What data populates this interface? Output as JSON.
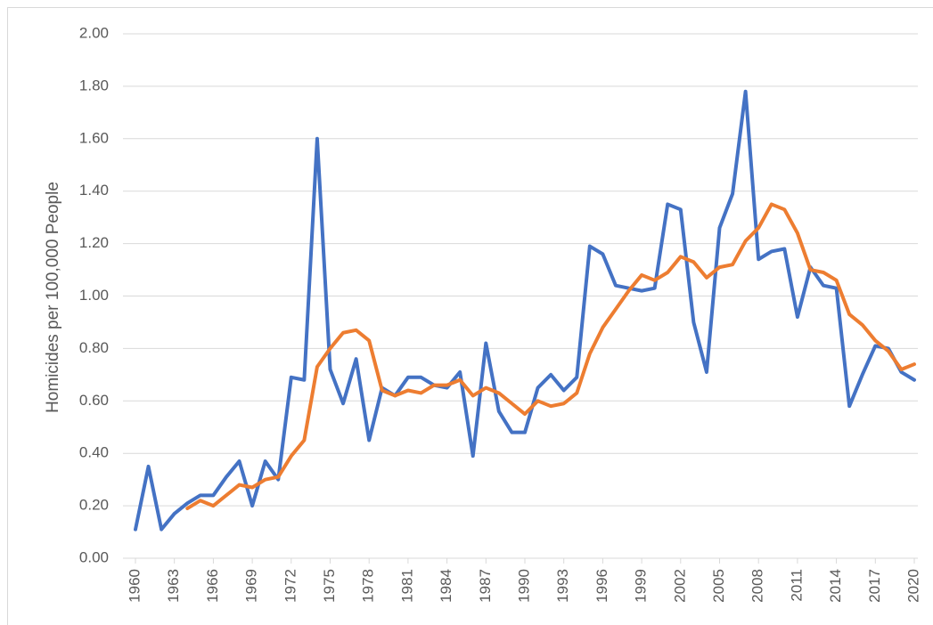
{
  "chart_data": {
    "type": "line",
    "y_label": "Homicides per 100,000 People",
    "x": [
      1960,
      1961,
      1962,
      1963,
      1964,
      1965,
      1966,
      1967,
      1968,
      1969,
      1970,
      1971,
      1972,
      1973,
      1974,
      1975,
      1976,
      1977,
      1978,
      1979,
      1980,
      1981,
      1982,
      1983,
      1984,
      1985,
      1986,
      1987,
      1988,
      1989,
      1990,
      1991,
      1992,
      1993,
      1994,
      1995,
      1996,
      1997,
      1998,
      1999,
      2000,
      2001,
      2002,
      2003,
      2004,
      2005,
      2006,
      2007,
      2008,
      2009,
      2010,
      2011,
      2012,
      2013,
      2014,
      2015,
      2016,
      2017,
      2018,
      2019,
      2020
    ],
    "xlim": [
      1960,
      2020
    ],
    "xticks": [
      1960,
      1963,
      1966,
      1969,
      1972,
      1975,
      1978,
      1981,
      1984,
      1987,
      1990,
      1993,
      1996,
      1999,
      2002,
      2005,
      2008,
      2011,
      2014,
      2017,
      2020
    ],
    "ylim": [
      0,
      2
    ],
    "yticks": [
      {
        "value": 0,
        "label": "0.00"
      },
      {
        "value": 0.2,
        "label": "0.20"
      },
      {
        "value": 0.4,
        "label": "0.40"
      },
      {
        "value": 0.6,
        "label": "0.60"
      },
      {
        "value": 0.8,
        "label": "0.80"
      },
      {
        "value": 1,
        "label": "1.00"
      },
      {
        "value": 1.2,
        "label": "1.20"
      },
      {
        "value": 1.4,
        "label": "1.40"
      },
      {
        "value": 1.6,
        "label": "1.60"
      },
      {
        "value": 1.8,
        "label": "1.80"
      },
      {
        "value": 2,
        "label": "2.00"
      }
    ],
    "grid": true,
    "series": [
      {
        "color": "#4472c4",
        "values": [
          0.11,
          0.35,
          0.11,
          0.17,
          0.21,
          0.24,
          0.24,
          0.31,
          0.37,
          0.2,
          0.37,
          0.3,
          0.69,
          0.68,
          1.6,
          0.72,
          0.59,
          0.76,
          0.45,
          0.65,
          0.62,
          0.69,
          0.69,
          0.66,
          0.65,
          0.71,
          0.39,
          0.82,
          0.56,
          0.48,
          0.48,
          0.65,
          0.7,
          0.64,
          0.69,
          1.19,
          1.16,
          1.04,
          1.03,
          1.02,
          1.03,
          1.35,
          1.33,
          0.9,
          0.71,
          1.26,
          1.39,
          1.78,
          1.14,
          1.17,
          1.18,
          0.92,
          1.11,
          1.04,
          1.03,
          0.58,
          0.7,
          0.81,
          0.8,
          0.71,
          0.68
        ]
      },
      {
        "color": "#ed7d31",
        "values": [
          null,
          null,
          null,
          null,
          0.19,
          0.22,
          0.2,
          0.24,
          0.28,
          0.27,
          0.3,
          0.31,
          0.39,
          0.45,
          0.73,
          0.8,
          0.86,
          0.87,
          0.83,
          0.64,
          0.62,
          0.64,
          0.63,
          0.66,
          0.66,
          0.68,
          0.62,
          0.65,
          0.63,
          0.59,
          0.55,
          0.6,
          0.58,
          0.59,
          0.63,
          0.78,
          0.88,
          0.95,
          1.02,
          1.08,
          1.06,
          1.09,
          1.15,
          1.13,
          1.07,
          1.11,
          1.12,
          1.21,
          1.26,
          1.35,
          1.33,
          1.24,
          1.1,
          1.09,
          1.06,
          0.93,
          0.89,
          0.83,
          0.79,
          0.72,
          0.74
        ]
      }
    ]
  }
}
